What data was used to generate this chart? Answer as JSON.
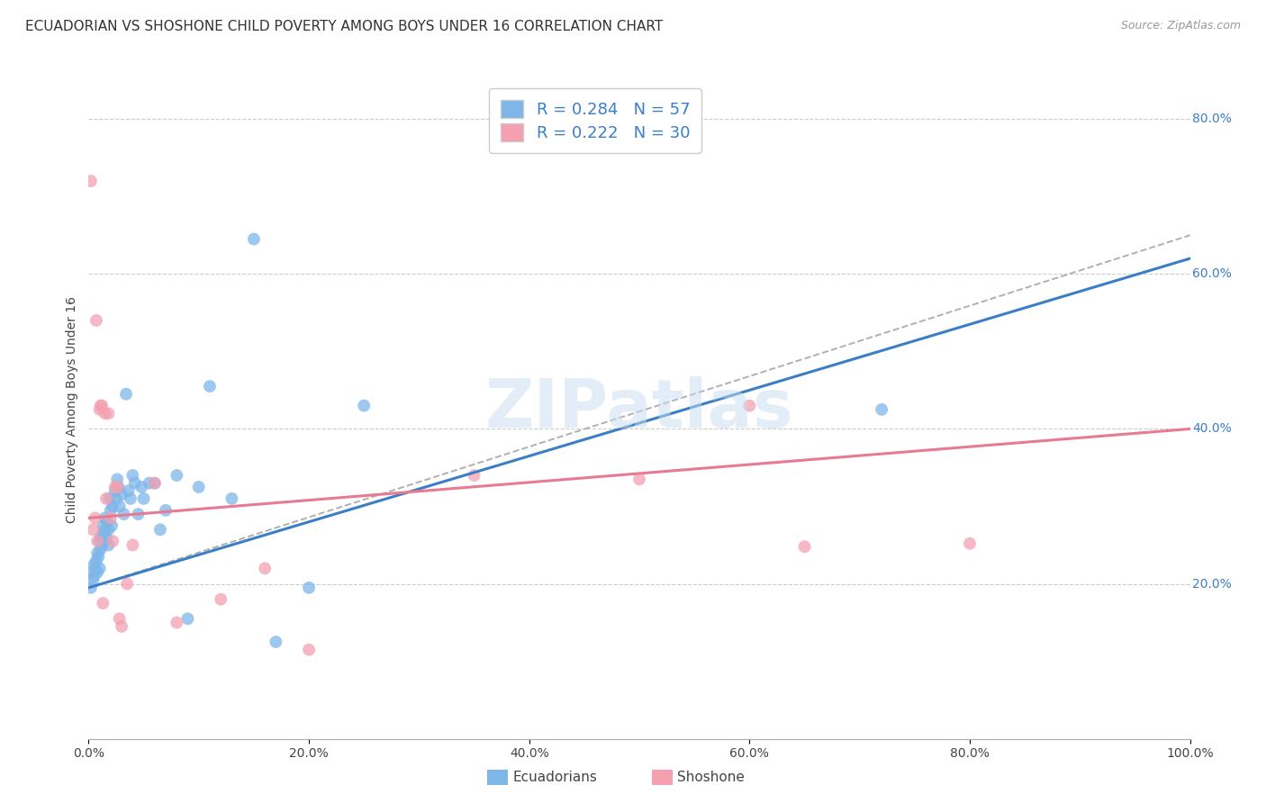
{
  "title": "ECUADORIAN VS SHOSHONE CHILD POVERTY AMONG BOYS UNDER 16 CORRELATION CHART",
  "source": "Source: ZipAtlas.com",
  "ylabel": "Child Poverty Among Boys Under 16",
  "watermark": "ZIPatlas",
  "ecuadorian_r": 0.284,
  "ecuadorian_n": 57,
  "shoshone_r": 0.222,
  "shoshone_n": 30,
  "xlim": [
    0.0,
    1.0
  ],
  "ylim": [
    0.0,
    0.85
  ],
  "xticks": [
    0.0,
    0.2,
    0.4,
    0.6,
    0.8,
    1.0
  ],
  "xticklabels": [
    "0.0%",
    "20.0%",
    "40.0%",
    "60.0%",
    "80.0%",
    "100.0%"
  ],
  "ytick_right_vals": [
    0.2,
    0.4,
    0.6,
    0.8
  ],
  "ytick_right_labels": [
    "20.0%",
    "40.0%",
    "60.0%",
    "80.0%"
  ],
  "blue_color": "#7EB6E8",
  "pink_color": "#F4A0B0",
  "blue_line_color": "#3A7EC6",
  "pink_line_color": "#E87A92",
  "dashed_line_color": "#B0B0B0",
  "legend_r_color": "#3A7EC6",
  "title_fontsize": 11,
  "scatter_size": 100,
  "ecuadorians_x": [
    0.002,
    0.003,
    0.004,
    0.005,
    0.005,
    0.006,
    0.007,
    0.008,
    0.008,
    0.009,
    0.01,
    0.01,
    0.011,
    0.011,
    0.012,
    0.013,
    0.013,
    0.014,
    0.015,
    0.015,
    0.016,
    0.017,
    0.018,
    0.018,
    0.019,
    0.02,
    0.021,
    0.022,
    0.024,
    0.025,
    0.026,
    0.027,
    0.028,
    0.03,
    0.032,
    0.034,
    0.036,
    0.038,
    0.04,
    0.042,
    0.045,
    0.048,
    0.05,
    0.055,
    0.06,
    0.065,
    0.07,
    0.08,
    0.09,
    0.1,
    0.11,
    0.13,
    0.15,
    0.17,
    0.2,
    0.25,
    0.72
  ],
  "ecuadorians_y": [
    0.195,
    0.215,
    0.205,
    0.225,
    0.21,
    0.22,
    0.23,
    0.24,
    0.215,
    0.235,
    0.22,
    0.255,
    0.245,
    0.26,
    0.25,
    0.265,
    0.275,
    0.255,
    0.27,
    0.285,
    0.26,
    0.28,
    0.27,
    0.25,
    0.31,
    0.295,
    0.275,
    0.3,
    0.32,
    0.31,
    0.335,
    0.325,
    0.3,
    0.315,
    0.29,
    0.445,
    0.32,
    0.31,
    0.34,
    0.33,
    0.29,
    0.325,
    0.31,
    0.33,
    0.33,
    0.27,
    0.295,
    0.34,
    0.155,
    0.325,
    0.455,
    0.31,
    0.645,
    0.125,
    0.195,
    0.43,
    0.425
  ],
  "shoshone_x": [
    0.002,
    0.004,
    0.006,
    0.007,
    0.008,
    0.01,
    0.011,
    0.012,
    0.013,
    0.015,
    0.016,
    0.018,
    0.02,
    0.022,
    0.024,
    0.026,
    0.028,
    0.03,
    0.035,
    0.04,
    0.06,
    0.08,
    0.12,
    0.16,
    0.2,
    0.35,
    0.5,
    0.6,
    0.65,
    0.8
  ],
  "shoshone_y": [
    0.72,
    0.27,
    0.285,
    0.54,
    0.255,
    0.425,
    0.43,
    0.43,
    0.175,
    0.42,
    0.31,
    0.42,
    0.285,
    0.255,
    0.325,
    0.325,
    0.155,
    0.145,
    0.2,
    0.25,
    0.33,
    0.15,
    0.18,
    0.22,
    0.115,
    0.34,
    0.335,
    0.43,
    0.248,
    0.252
  ],
  "ecu_trendline_x": [
    0.0,
    1.0
  ],
  "ecu_trendline_y": [
    0.195,
    0.62
  ],
  "sho_trendline_x": [
    0.0,
    1.0
  ],
  "sho_trendline_y": [
    0.285,
    0.4
  ],
  "dashed_trendline_x": [
    0.0,
    1.0
  ],
  "dashed_trendline_y": [
    0.195,
    0.65
  ],
  "grid_color": "#CCCCCC",
  "background_color": "#FFFFFF"
}
